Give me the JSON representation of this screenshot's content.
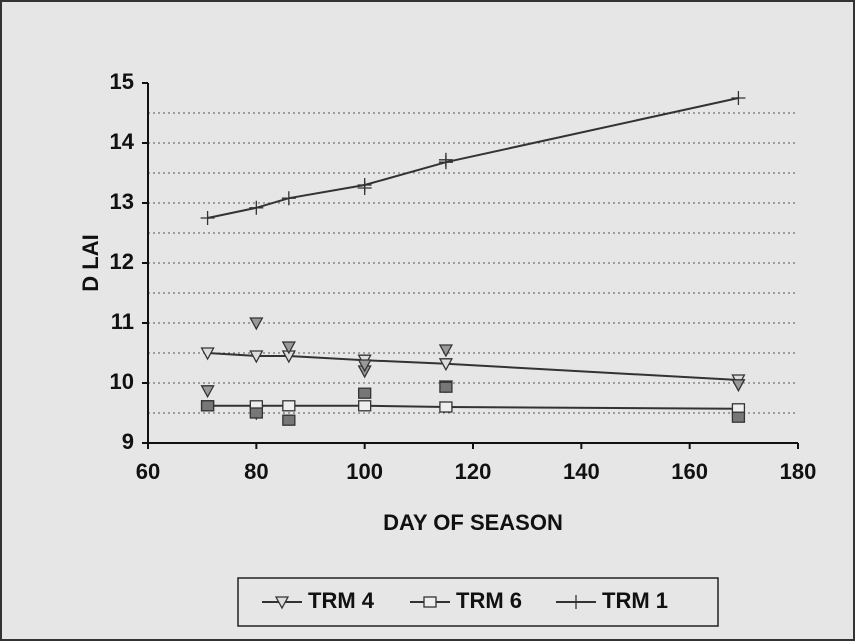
{
  "chart_data": {
    "type": "line",
    "xlabel": "DAY OF SEASON",
    "ylabel": "D LAI",
    "xlim": [
      60,
      180
    ],
    "xticks": [
      60,
      80,
      100,
      120,
      140,
      160,
      180
    ],
    "ylim": [
      9,
      15
    ],
    "yticks": [
      9,
      10,
      11,
      12,
      13,
      14,
      15
    ],
    "grid_yticks": [
      9.5,
      10,
      10.5,
      11,
      11.5,
      12,
      12.5,
      13,
      13.5,
      14,
      14.5
    ],
    "grid": true,
    "legend": "bottom",
    "series": [
      {
        "name": "TRM 4",
        "color": "#333333",
        "marker": "triangle-down",
        "x": [
          71,
          80,
          86,
          100,
          115,
          169
        ],
        "values": [
          10.5,
          10.45,
          10.45,
          10.38,
          10.32,
          10.05
        ],
        "points_x": [
          71,
          80,
          80,
          86,
          100,
          100,
          115,
          115,
          169
        ],
        "points_y": [
          9.87,
          11.0,
          9.5,
          10.6,
          10.2,
          10.3,
          10.55,
          9.95,
          9.97
        ]
      },
      {
        "name": "TRM 6",
        "color": "#333333",
        "marker": "square",
        "x": [
          71,
          80,
          86,
          100,
          115,
          169
        ],
        "values": [
          9.62,
          9.62,
          9.62,
          9.62,
          9.6,
          9.57
        ],
        "points_x": [
          71,
          80,
          86,
          100,
          115,
          169
        ],
        "points_y": [
          9.62,
          9.5,
          9.38,
          9.83,
          9.93,
          9.43
        ]
      },
      {
        "name": "TRM 1",
        "color": "#333333",
        "marker": "plus",
        "x": [
          71,
          80,
          86,
          100,
          115,
          169
        ],
        "values": [
          12.75,
          12.92,
          13.08,
          13.3,
          13.68,
          14.75
        ],
        "points_x": [
          100,
          115
        ],
        "points_y": [
          13.25,
          13.72
        ]
      }
    ]
  }
}
